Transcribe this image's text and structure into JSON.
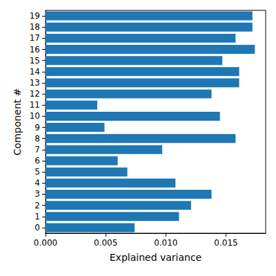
{
  "chart_data": {
    "type": "bar",
    "orientation": "horizontal",
    "color": "#1f77b4",
    "x_label": "Explained variance",
    "y_label": "Component #",
    "categories": [
      "0",
      "1",
      "2",
      "3",
      "4",
      "5",
      "6",
      "7",
      "8",
      "9",
      "10",
      "11",
      "12",
      "13",
      "14",
      "15",
      "16",
      "17",
      "18",
      "19"
    ],
    "values": [
      0.0074,
      0.0111,
      0.0121,
      0.0138,
      0.0108,
      0.0068,
      0.006,
      0.0097,
      0.0158,
      0.0049,
      0.0145,
      0.0043,
      0.0138,
      0.0161,
      0.0161,
      0.0147,
      0.0174,
      0.0158,
      0.0172,
      0.0172
    ],
    "xlim": [
      0,
      0.0183
    ],
    "xticks": [
      {
        "value": 0,
        "label": "0.000"
      },
      {
        "value": 0.005,
        "label": "0.005"
      },
      {
        "value": 0.01,
        "label": "0.010"
      },
      {
        "value": 0.015,
        "label": "0.015"
      }
    ],
    "grid": false
  }
}
